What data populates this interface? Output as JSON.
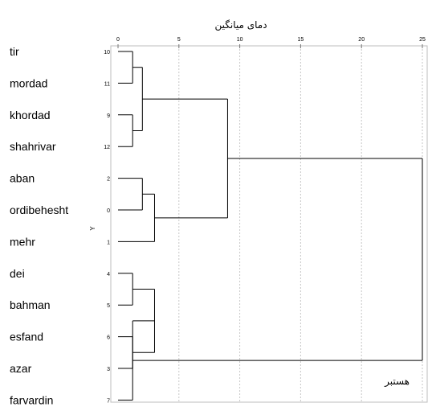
{
  "chart_data": {
    "type": "dendrogram",
    "title": "دمای میانگین",
    "corner_label": "هستبر",
    "axis_char": "Y",
    "x_ticks": [
      "0",
      "5",
      "10",
      "15",
      "20",
      "25"
    ],
    "xlim": [
      0,
      25
    ],
    "grid": true,
    "leaves": [
      {
        "label": "tir",
        "case": "10"
      },
      {
        "label": "mordad",
        "case": "11"
      },
      {
        "label": "khordad",
        "case": "9"
      },
      {
        "label": "shahrivar",
        "case": "12"
      },
      {
        "label": "aban",
        "case": "2"
      },
      {
        "label": "ordibehesht",
        "case": "0"
      },
      {
        "label": "mehr",
        "case": "1"
      },
      {
        "label": "dei",
        "case": "4"
      },
      {
        "label": "bahman",
        "case": "5"
      },
      {
        "label": "esfand",
        "case": "6"
      },
      {
        "label": "azar",
        "case": "3"
      },
      {
        "label": "farvardin",
        "case": "7"
      }
    ],
    "merges": [
      {
        "a": "L0",
        "b": "L1",
        "height": 1.2
      },
      {
        "a": "L2",
        "b": "L3",
        "height": 1.2
      },
      {
        "a": "M0",
        "b": "M1",
        "height": 2.0
      },
      {
        "a": "L4",
        "b": "L5",
        "height": 2.0
      },
      {
        "a": "M3",
        "b": "L6",
        "height": 3.0
      },
      {
        "a": "M2",
        "b": "M4",
        "height": 9.0
      },
      {
        "a": "L7",
        "b": "L8",
        "height": 1.2
      },
      {
        "a": "L9",
        "b": "L10",
        "height": 1.2
      },
      {
        "a": "M6",
        "b": "M7",
        "height": 3.0
      },
      {
        "a": "M8",
        "b": "L11",
        "height": 1.2
      },
      {
        "a": "M5",
        "b": "M9",
        "height": 25.0
      }
    ]
  }
}
